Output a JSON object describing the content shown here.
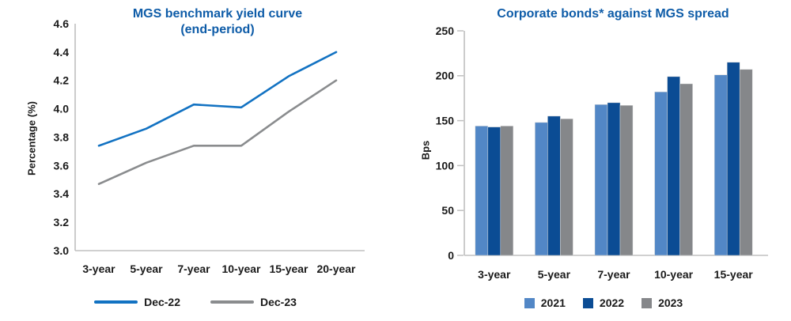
{
  "theme": {
    "title_color": "#0E5CA8",
    "axis_line_color": "#C0C0C0",
    "tick_text_color": "#1A1A1A",
    "background": "#FFFFFF"
  },
  "chart_data": [
    {
      "type": "line",
      "title": "MGS benchmark yield curve\n(end-period)",
      "ylabel": "Percentage (%)",
      "xlabel": "",
      "categories": [
        "3-year",
        "5-year",
        "7-year",
        "10-year",
        "15-year",
        "20-year"
      ],
      "series": [
        {
          "name": "Dec-22",
          "color": "#1272C2",
          "values": [
            3.74,
            3.86,
            4.03,
            4.01,
            4.23,
            4.4
          ]
        },
        {
          "name": "Dec-23",
          "color": "#8A8C8E",
          "values": [
            3.47,
            3.62,
            3.74,
            3.74,
            3.98,
            4.2
          ]
        }
      ],
      "ylim": [
        3.0,
        4.6
      ],
      "ytick_step": 0.2,
      "ytick_decimals": 1,
      "grid": false,
      "legend_position": "bottom"
    },
    {
      "type": "bar",
      "title": "Corporate bonds* against MGS spread",
      "ylabel": "Bps",
      "xlabel": "",
      "categories": [
        "3-year",
        "5-year",
        "7-year",
        "10-year",
        "15-year"
      ],
      "series": [
        {
          "name": "2021",
          "color": "#5287C6",
          "values": [
            144,
            148,
            168,
            182,
            201
          ]
        },
        {
          "name": "2022",
          "color": "#0B4C94",
          "values": [
            143,
            155,
            170,
            199,
            215
          ]
        },
        {
          "name": "2023",
          "color": "#85878A",
          "values": [
            144,
            152,
            167,
            191,
            207
          ]
        }
      ],
      "ylim": [
        0,
        250
      ],
      "ytick_step": 50,
      "ytick_decimals": 0,
      "grid": false,
      "legend_position": "bottom"
    }
  ]
}
